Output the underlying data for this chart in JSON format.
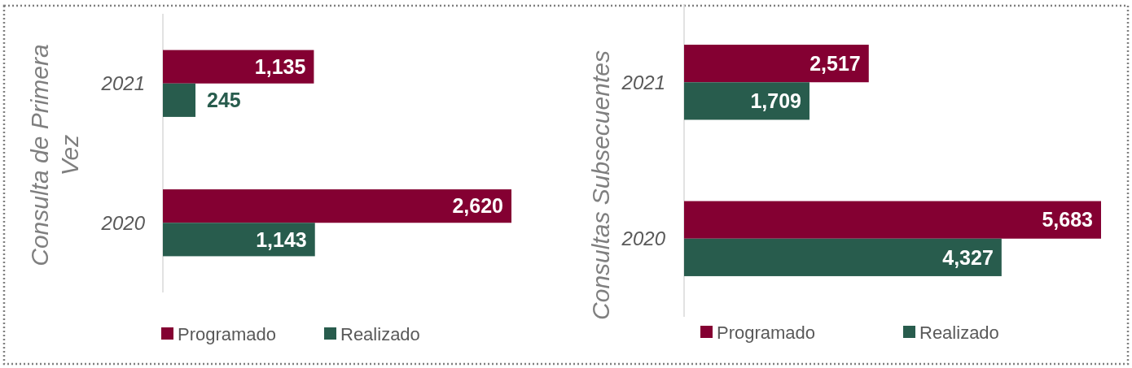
{
  "chart_data": [
    {
      "type": "bar",
      "orientation": "horizontal",
      "ylabel": "Consulta de Primera Vez",
      "categories": [
        "2021",
        "2020"
      ],
      "series": [
        {
          "name": "Programado",
          "color": "#840032",
          "values": [
            1135,
            2620
          ],
          "value_labels": [
            "1,135",
            "2,620"
          ]
        },
        {
          "name": "Realizado",
          "color": "#285c4d",
          "values": [
            245,
            1143
          ],
          "value_labels": [
            "245",
            "1,143"
          ]
        }
      ],
      "tick_labels": "y",
      "legend": "bottom"
    },
    {
      "type": "bar",
      "orientation": "horizontal",
      "ylabel": "Consultas Subsecuentes",
      "categories": [
        "2021",
        "2020"
      ],
      "series": [
        {
          "name": "Programado",
          "color": "#840032",
          "values": [
            2517,
            5683
          ],
          "value_labels": [
            "2,517",
            "5,683"
          ]
        },
        {
          "name": "Realizado",
          "color": "#285c4d",
          "values": [
            1709,
            4327
          ],
          "value_labels": [
            "1,709",
            "4,327"
          ]
        }
      ],
      "tick_labels": "y",
      "legend": "bottom"
    }
  ]
}
